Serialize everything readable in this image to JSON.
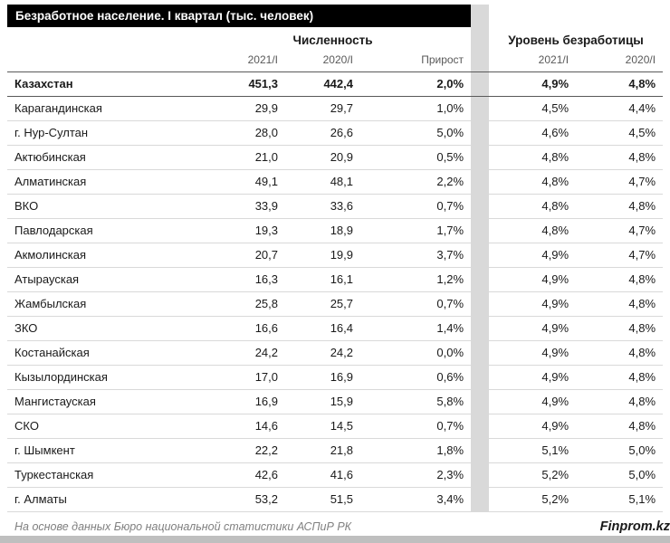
{
  "chart_data": {
    "type": "table",
    "title": "Безработное население. I квартал (тыс. человек)",
    "column_groups": [
      {
        "label": "Численность",
        "span": 3
      },
      {
        "label": "Уровень безработицы",
        "span": 2
      }
    ],
    "columns": [
      "",
      "2021/I",
      "2020/I",
      "Прирост",
      "2021/I",
      "2020/I"
    ],
    "rows": [
      {
        "region": "Казахстан",
        "num_2021": "451,3",
        "num_2020": "442,4",
        "growth": "2,0%",
        "rate_2021": "4,9%",
        "rate_2020": "4,8%",
        "bold": true
      },
      {
        "region": "Карагандинская",
        "num_2021": "29,9",
        "num_2020": "29,7",
        "growth": "1,0%",
        "rate_2021": "4,5%",
        "rate_2020": "4,4%"
      },
      {
        "region": "г. Нур-Султан",
        "num_2021": "28,0",
        "num_2020": "26,6",
        "growth": "5,0%",
        "rate_2021": "4,6%",
        "rate_2020": "4,5%"
      },
      {
        "region": "Актюбинская",
        "num_2021": "21,0",
        "num_2020": "20,9",
        "growth": "0,5%",
        "rate_2021": "4,8%",
        "rate_2020": "4,8%"
      },
      {
        "region": "Алматинская",
        "num_2021": "49,1",
        "num_2020": "48,1",
        "growth": "2,2%",
        "rate_2021": "4,8%",
        "rate_2020": "4,7%"
      },
      {
        "region": "ВКО",
        "num_2021": "33,9",
        "num_2020": "33,6",
        "growth": "0,7%",
        "rate_2021": "4,8%",
        "rate_2020": "4,8%"
      },
      {
        "region": "Павлодарская",
        "num_2021": "19,3",
        "num_2020": "18,9",
        "growth": "1,7%",
        "rate_2021": "4,8%",
        "rate_2020": "4,7%"
      },
      {
        "region": "Акмолинская",
        "num_2021": "20,7",
        "num_2020": "19,9",
        "growth": "3,7%",
        "rate_2021": "4,9%",
        "rate_2020": "4,7%"
      },
      {
        "region": "Атырауская",
        "num_2021": "16,3",
        "num_2020": "16,1",
        "growth": "1,2%",
        "rate_2021": "4,9%",
        "rate_2020": "4,8%"
      },
      {
        "region": "Жамбылская",
        "num_2021": "25,8",
        "num_2020": "25,7",
        "growth": "0,7%",
        "rate_2021": "4,9%",
        "rate_2020": "4,8%"
      },
      {
        "region": "ЗКО",
        "num_2021": "16,6",
        "num_2020": "16,4",
        "growth": "1,4%",
        "rate_2021": "4,9%",
        "rate_2020": "4,8%"
      },
      {
        "region": "Костанайская",
        "num_2021": "24,2",
        "num_2020": "24,2",
        "growth": "0,0%",
        "rate_2021": "4,9%",
        "rate_2020": "4,8%"
      },
      {
        "region": "Кызылординская",
        "num_2021": "17,0",
        "num_2020": "16,9",
        "growth": "0,6%",
        "rate_2021": "4,9%",
        "rate_2020": "4,8%"
      },
      {
        "region": "Мангистауская",
        "num_2021": "16,9",
        "num_2020": "15,9",
        "growth": "5,8%",
        "rate_2021": "4,9%",
        "rate_2020": "4,8%"
      },
      {
        "region": "СКО",
        "num_2021": "14,6",
        "num_2020": "14,5",
        "growth": "0,7%",
        "rate_2021": "4,9%",
        "rate_2020": "4,8%"
      },
      {
        "region": "г. Шымкент",
        "num_2021": "22,2",
        "num_2020": "21,8",
        "growth": "1,8%",
        "rate_2021": "5,1%",
        "rate_2020": "5,0%"
      },
      {
        "region": "Туркестанская",
        "num_2021": "42,6",
        "num_2020": "41,6",
        "growth": "2,3%",
        "rate_2021": "5,2%",
        "rate_2020": "5,0%"
      },
      {
        "region": "г. Алматы",
        "num_2021": "53,2",
        "num_2020": "51,5",
        "growth": "3,4%",
        "rate_2021": "5,2%",
        "rate_2020": "5,1%"
      }
    ]
  },
  "footer": {
    "source": "На основе данных Бюро национальной статистики АСПиР РК",
    "brand": "Finprom.kz"
  },
  "colors": {
    "title_bg": "#000000",
    "title_text": "#ffffff",
    "spacer": "#d9d9d9",
    "row_border": "#d9d9d9",
    "strong_border": "#595959",
    "subheader_text": "#595959",
    "source_text": "#808080",
    "bottom_bar": "#bfbfbf"
  }
}
